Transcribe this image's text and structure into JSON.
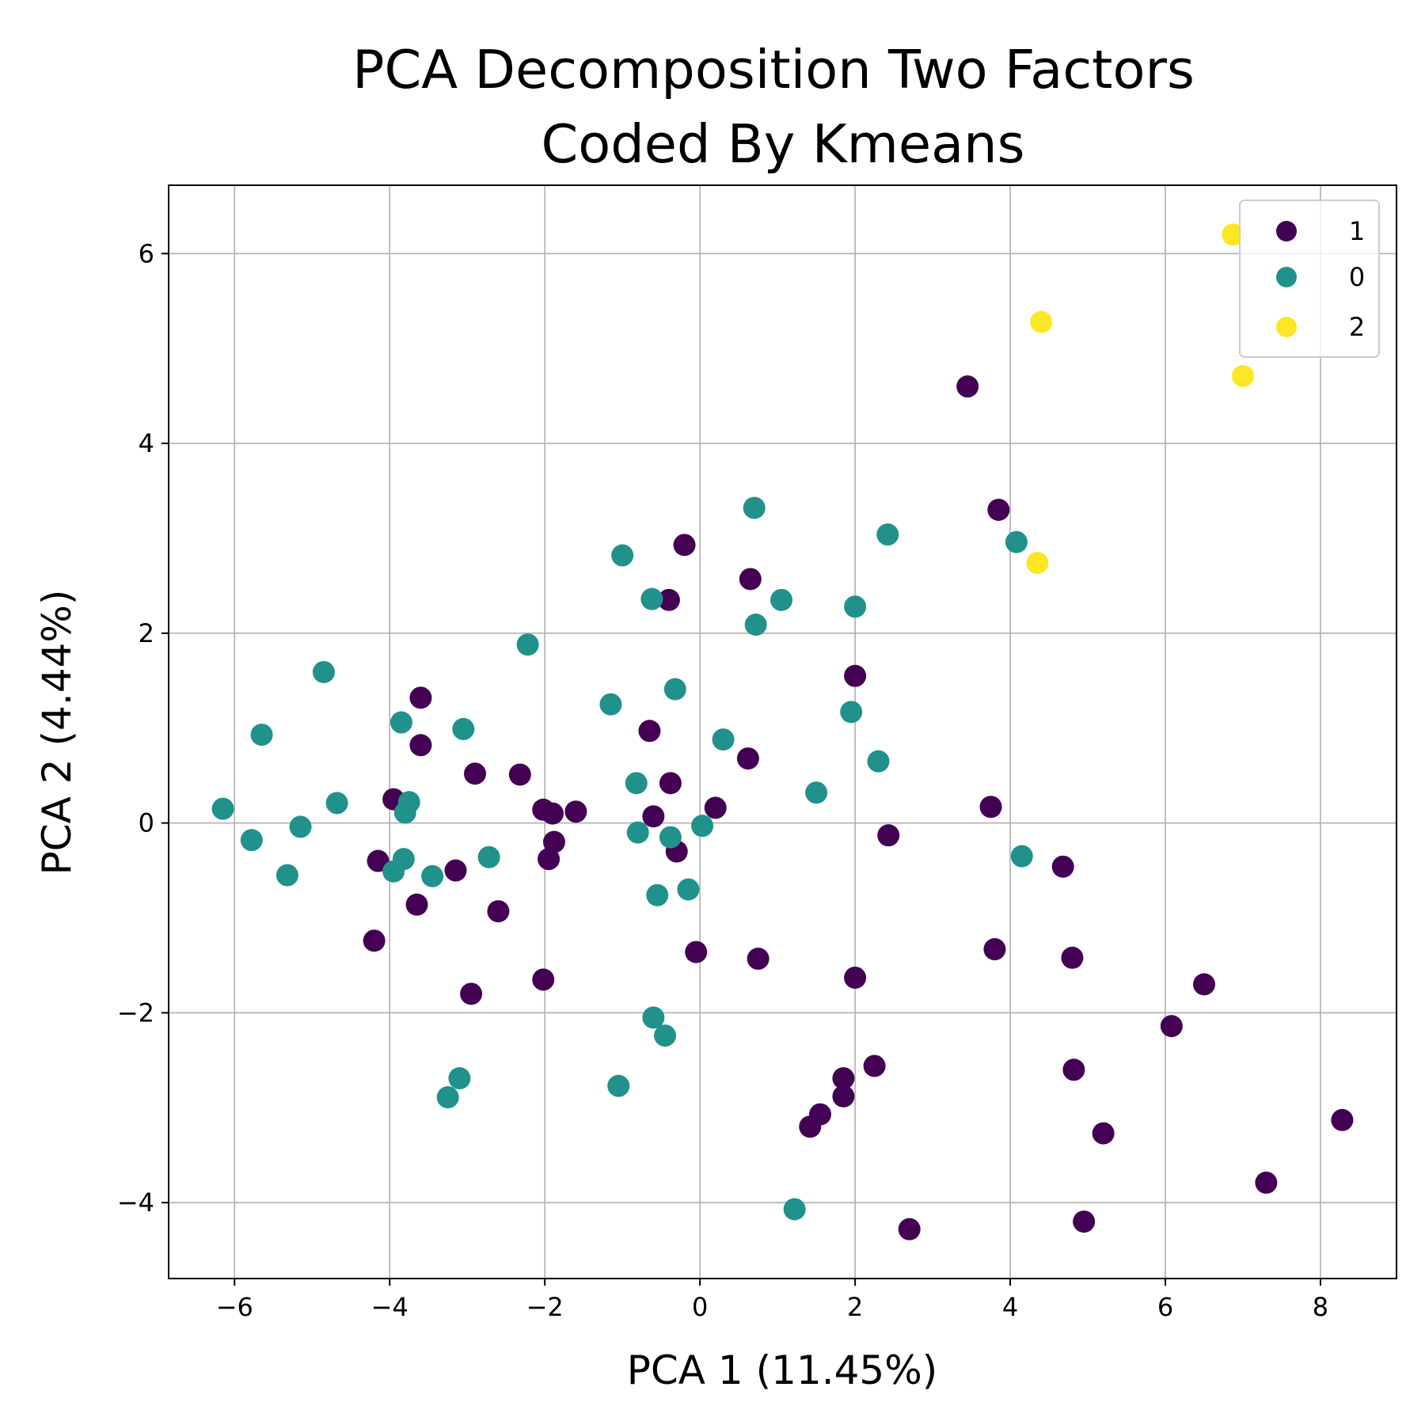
{
  "chart_data": {
    "type": "scatter",
    "title": [
      "PCA Decomposition Two Factors",
      "Coded By Kmeans"
    ],
    "xlabel": "PCA 1 (11.45%)",
    "ylabel": "PCA 2 (4.44%)",
    "xlim": [
      -6.85,
      8.98
    ],
    "ylim": [
      -4.8,
      6.72
    ],
    "xticks": [
      -6,
      -4,
      -2,
      0,
      2,
      4,
      6,
      8
    ],
    "xtick_labels": [
      "−6",
      "−4",
      "−2",
      "0",
      "2",
      "4",
      "6",
      "8"
    ],
    "yticks": [
      -4,
      -2,
      0,
      2,
      4,
      6
    ],
    "ytick_labels": [
      "−4",
      "−2",
      "0",
      "2",
      "4",
      "6"
    ],
    "grid": true,
    "legend_position": "top-right",
    "series": [
      {
        "name": "1",
        "color": "#440154",
        "points": [
          [
            3.45,
            4.6
          ],
          [
            3.85,
            3.3
          ],
          [
            -0.2,
            2.93
          ],
          [
            0.65,
            2.57
          ],
          [
            -0.4,
            2.35
          ],
          [
            2.0,
            1.55
          ],
          [
            -3.6,
            1.32
          ],
          [
            -0.65,
            0.97
          ],
          [
            -3.6,
            0.82
          ],
          [
            0.62,
            0.68
          ],
          [
            -2.9,
            0.52
          ],
          [
            -2.32,
            0.51
          ],
          [
            -0.38,
            0.42
          ],
          [
            -3.95,
            0.25
          ],
          [
            3.75,
            0.17
          ],
          [
            0.2,
            0.16
          ],
          [
            -2.02,
            0.14
          ],
          [
            -1.6,
            0.12
          ],
          [
            -1.9,
            0.1
          ],
          [
            -0.6,
            0.07
          ],
          [
            2.43,
            -0.13
          ],
          [
            -1.88,
            -0.2
          ],
          [
            -0.3,
            -0.3
          ],
          [
            -1.95,
            -0.38
          ],
          [
            -4.15,
            -0.4
          ],
          [
            -3.15,
            -0.5
          ],
          [
            4.68,
            -0.46
          ],
          [
            -3.65,
            -0.86
          ],
          [
            -2.6,
            -0.93
          ],
          [
            -4.2,
            -1.24
          ],
          [
            -0.05,
            -1.36
          ],
          [
            0.75,
            -1.43
          ],
          [
            3.8,
            -1.33
          ],
          [
            4.8,
            -1.42
          ],
          [
            2.0,
            -1.63
          ],
          [
            -2.02,
            -1.65
          ],
          [
            -2.95,
            -1.8
          ],
          [
            6.5,
            -1.7
          ],
          [
            6.08,
            -2.14
          ],
          [
            2.25,
            -2.56
          ],
          [
            4.82,
            -2.6
          ],
          [
            1.85,
            -2.69
          ],
          [
            1.85,
            -2.88
          ],
          [
            1.55,
            -3.07
          ],
          [
            1.42,
            -3.2
          ],
          [
            5.2,
            -3.27
          ],
          [
            8.28,
            -3.13
          ],
          [
            7.3,
            -3.79
          ],
          [
            4.95,
            -4.2
          ],
          [
            2.7,
            -4.28
          ]
        ]
      },
      {
        "name": "0",
        "color": "#21918c",
        "points": [
          [
            0.7,
            3.32
          ],
          [
            2.42,
            3.04
          ],
          [
            4.08,
            2.96
          ],
          [
            -1.0,
            2.82
          ],
          [
            -0.62,
            2.36
          ],
          [
            1.05,
            2.35
          ],
          [
            2.0,
            2.28
          ],
          [
            0.72,
            2.09
          ],
          [
            -2.22,
            1.88
          ],
          [
            -4.85,
            1.59
          ],
          [
            -0.32,
            1.41
          ],
          [
            -1.15,
            1.25
          ],
          [
            1.95,
            1.17
          ],
          [
            -3.85,
            1.06
          ],
          [
            -3.05,
            0.99
          ],
          [
            -5.65,
            0.93
          ],
          [
            0.3,
            0.88
          ],
          [
            2.3,
            0.65
          ],
          [
            -0.82,
            0.42
          ],
          [
            1.5,
            0.32
          ],
          [
            -3.75,
            0.22
          ],
          [
            -4.68,
            0.21
          ],
          [
            -6.15,
            0.15
          ],
          [
            -3.8,
            0.11
          ],
          [
            -5.15,
            -0.04
          ],
          [
            0.03,
            -0.03
          ],
          [
            -0.8,
            -0.1
          ],
          [
            -0.38,
            -0.15
          ],
          [
            -5.78,
            -0.18
          ],
          [
            4.15,
            -0.35
          ],
          [
            -2.72,
            -0.36
          ],
          [
            -3.82,
            -0.38
          ],
          [
            -3.95,
            -0.51
          ],
          [
            -5.32,
            -0.55
          ],
          [
            -3.45,
            -0.56
          ],
          [
            -0.15,
            -0.7
          ],
          [
            -0.55,
            -0.76
          ],
          [
            -0.6,
            -2.05
          ],
          [
            -0.45,
            -2.24
          ],
          [
            -3.1,
            -2.69
          ],
          [
            -1.05,
            -2.77
          ],
          [
            -3.25,
            -2.89
          ],
          [
            1.22,
            -4.07
          ]
        ]
      },
      {
        "name": "2",
        "color": "#fde725",
        "points": [
          [
            6.87,
            6.2
          ],
          [
            4.4,
            5.28
          ],
          [
            7.0,
            4.71
          ],
          [
            4.35,
            2.74
          ]
        ]
      }
    ]
  }
}
